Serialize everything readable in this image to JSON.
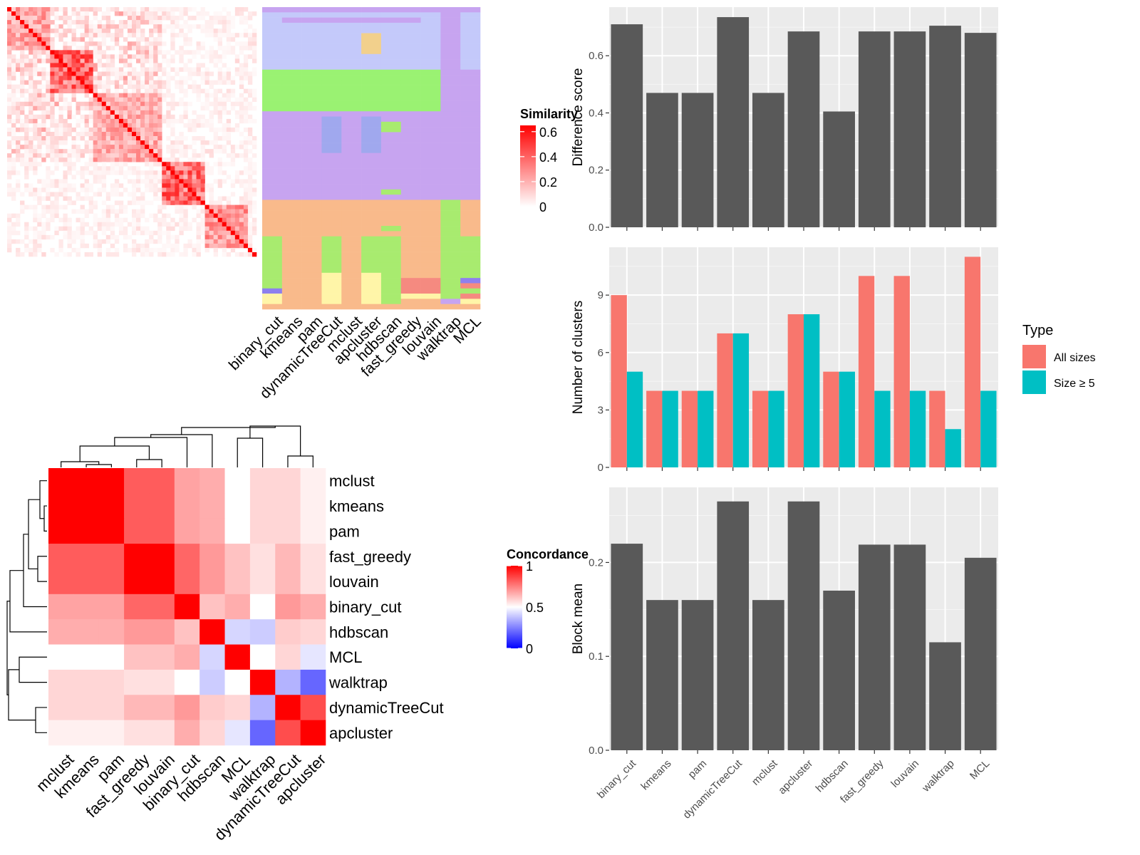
{
  "methods": [
    "binary_cut",
    "kmeans",
    "pam",
    "dynamicTreeCut",
    "mclust",
    "apcluster",
    "hdbscan",
    "fast_greedy",
    "louvain",
    "walktrap",
    "MCL"
  ],
  "chart_data": [
    {
      "type": "heatmap",
      "id": "similarity",
      "legend_title": "Similarity",
      "legend_ticks": [
        "0",
        "0.2",
        "0.4",
        "0.6"
      ],
      "scale": [
        0,
        0.65
      ],
      "colors": {
        "low": "#ffffff",
        "high": "#ff0000"
      },
      "blocks": [
        {
          "range": [
            0,
            10
          ],
          "level": 0.28
        },
        {
          "range": [
            10,
            20
          ],
          "level": 0.45
        },
        {
          "range": [
            20,
            36
          ],
          "level": 0.25
        },
        {
          "range": [
            36,
            46
          ],
          "level": 0.42
        },
        {
          "range": [
            46,
            56
          ],
          "level": 0.3
        }
      ],
      "size": 58
    },
    {
      "type": "heatmap",
      "id": "partition",
      "column_labels": [
        "binary_cut",
        "kmeans",
        "pam",
        "dynamicTreeCut",
        "mclust",
        "apcluster",
        "hdbscan",
        "fast_greedy",
        "louvain",
        "walktrap",
        "MCL"
      ],
      "colors": {
        "blue": "#c4c9fa",
        "green": "#9af272",
        "purple": "#c7a4f0",
        "orange": "#f9ba8b",
        "lightgreen": "#a8eb6f",
        "yellow": "#fff5a8",
        "lightblue": "#a0a8ee",
        "tan": "#f2d08c",
        "salmon": "#f58a80",
        "violet": "#8e80ee"
      },
      "bands": [
        {
          "rows": [
            0,
            12
          ],
          "color": "blue"
        },
        {
          "rows": [
            12,
            20
          ],
          "color": "green"
        },
        {
          "rows": [
            20,
            34
          ],
          "color": "purple"
        },
        {
          "rows": [
            34,
            40
          ],
          "color": "orange"
        },
        {
          "rows": [
            40,
            58
          ],
          "color": "mixed"
        }
      ]
    },
    {
      "type": "bar",
      "id": "difference",
      "categories": [
        "binary_cut",
        "kmeans",
        "pam",
        "dynamicTreeCut",
        "mclust",
        "apcluster",
        "hdbscan",
        "fast_greedy",
        "louvain",
        "walktrap",
        "MCL"
      ],
      "values": [
        0.71,
        0.47,
        0.47,
        0.735,
        0.47,
        0.685,
        0.405,
        0.685,
        0.685,
        0.705,
        0.68
      ],
      "ylabel": "Difference score",
      "ylim": [
        0,
        0.77
      ],
      "yticks": [
        "0.0",
        "0.2",
        "0.4",
        "0.6"
      ],
      "color": "#595959"
    },
    {
      "type": "bar",
      "id": "clusters",
      "categories": [
        "binary_cut",
        "kmeans",
        "pam",
        "dynamicTreeCut",
        "mclust",
        "apcluster",
        "hdbscan",
        "fast_greedy",
        "louvain",
        "walktrap",
        "MCL"
      ],
      "series": [
        {
          "name": "All sizes",
          "values": [
            9,
            4,
            4,
            7,
            4,
            8,
            5,
            10,
            10,
            4,
            11
          ],
          "color": "#f8766d"
        },
        {
          "name": "Size ≥ 5",
          "values": [
            5,
            4,
            4,
            7,
            4,
            8,
            5,
            4,
            4,
            2,
            4
          ],
          "color": "#00bfc4"
        }
      ],
      "ylabel": "Number of clusters",
      "ylim": [
        0,
        11.5
      ],
      "yticks": [
        "0",
        "3",
        "6",
        "9"
      ],
      "legend_title": "Type"
    },
    {
      "type": "bar",
      "id": "blockmean",
      "categories": [
        "binary_cut",
        "kmeans",
        "pam",
        "dynamicTreeCut",
        "mclust",
        "apcluster",
        "hdbscan",
        "fast_greedy",
        "louvain",
        "walktrap",
        "MCL"
      ],
      "values": [
        0.22,
        0.16,
        0.16,
        0.265,
        0.16,
        0.265,
        0.17,
        0.219,
        0.219,
        0.115,
        0.205
      ],
      "ylabel": "Block mean",
      "ylim": [
        0,
        0.28
      ],
      "yticks": [
        "0.0",
        "0.1",
        "0.2"
      ],
      "color": "#595959"
    },
    {
      "type": "heatmap",
      "id": "concordance",
      "labels": [
        "mclust",
        "kmeans",
        "pam",
        "fast_greedy",
        "louvain",
        "binary_cut",
        "hdbscan",
        "MCL",
        "walktrap",
        "dynamicTreeCut",
        "apcluster"
      ],
      "matrix": [
        [
          1,
          1,
          1,
          0.82,
          0.82,
          0.68,
          0.66,
          0.5,
          0.58,
          0.58,
          0.53
        ],
        [
          1,
          1,
          1,
          0.82,
          0.82,
          0.68,
          0.66,
          0.5,
          0.58,
          0.58,
          0.53
        ],
        [
          1,
          1,
          1,
          0.82,
          0.82,
          0.68,
          0.66,
          0.5,
          0.58,
          0.58,
          0.53
        ],
        [
          0.82,
          0.82,
          0.82,
          1,
          1,
          0.8,
          0.7,
          0.62,
          0.56,
          0.64,
          0.56
        ],
        [
          0.82,
          0.82,
          0.82,
          1,
          1,
          0.8,
          0.7,
          0.62,
          0.56,
          0.64,
          0.56
        ],
        [
          0.68,
          0.68,
          0.68,
          0.8,
          0.8,
          1,
          0.62,
          0.66,
          0.5,
          0.7,
          0.66
        ],
        [
          0.66,
          0.66,
          0.66,
          0.7,
          0.7,
          0.62,
          1,
          0.42,
          0.4,
          0.6,
          0.58
        ],
        [
          0.5,
          0.5,
          0.5,
          0.62,
          0.62,
          0.66,
          0.42,
          1,
          0.5,
          0.58,
          0.45
        ],
        [
          0.58,
          0.58,
          0.58,
          0.56,
          0.56,
          0.5,
          0.4,
          0.5,
          1,
          0.35,
          0.2
        ],
        [
          0.58,
          0.58,
          0.58,
          0.64,
          0.64,
          0.7,
          0.6,
          0.58,
          0.35,
          1,
          0.85
        ],
        [
          0.53,
          0.53,
          0.53,
          0.56,
          0.56,
          0.66,
          0.58,
          0.45,
          0.2,
          0.85,
          1
        ]
      ],
      "legend_title": "Concordance",
      "legend_ticks": [
        "0",
        "0.5",
        "1"
      ],
      "scale": [
        0,
        1
      ]
    }
  ]
}
